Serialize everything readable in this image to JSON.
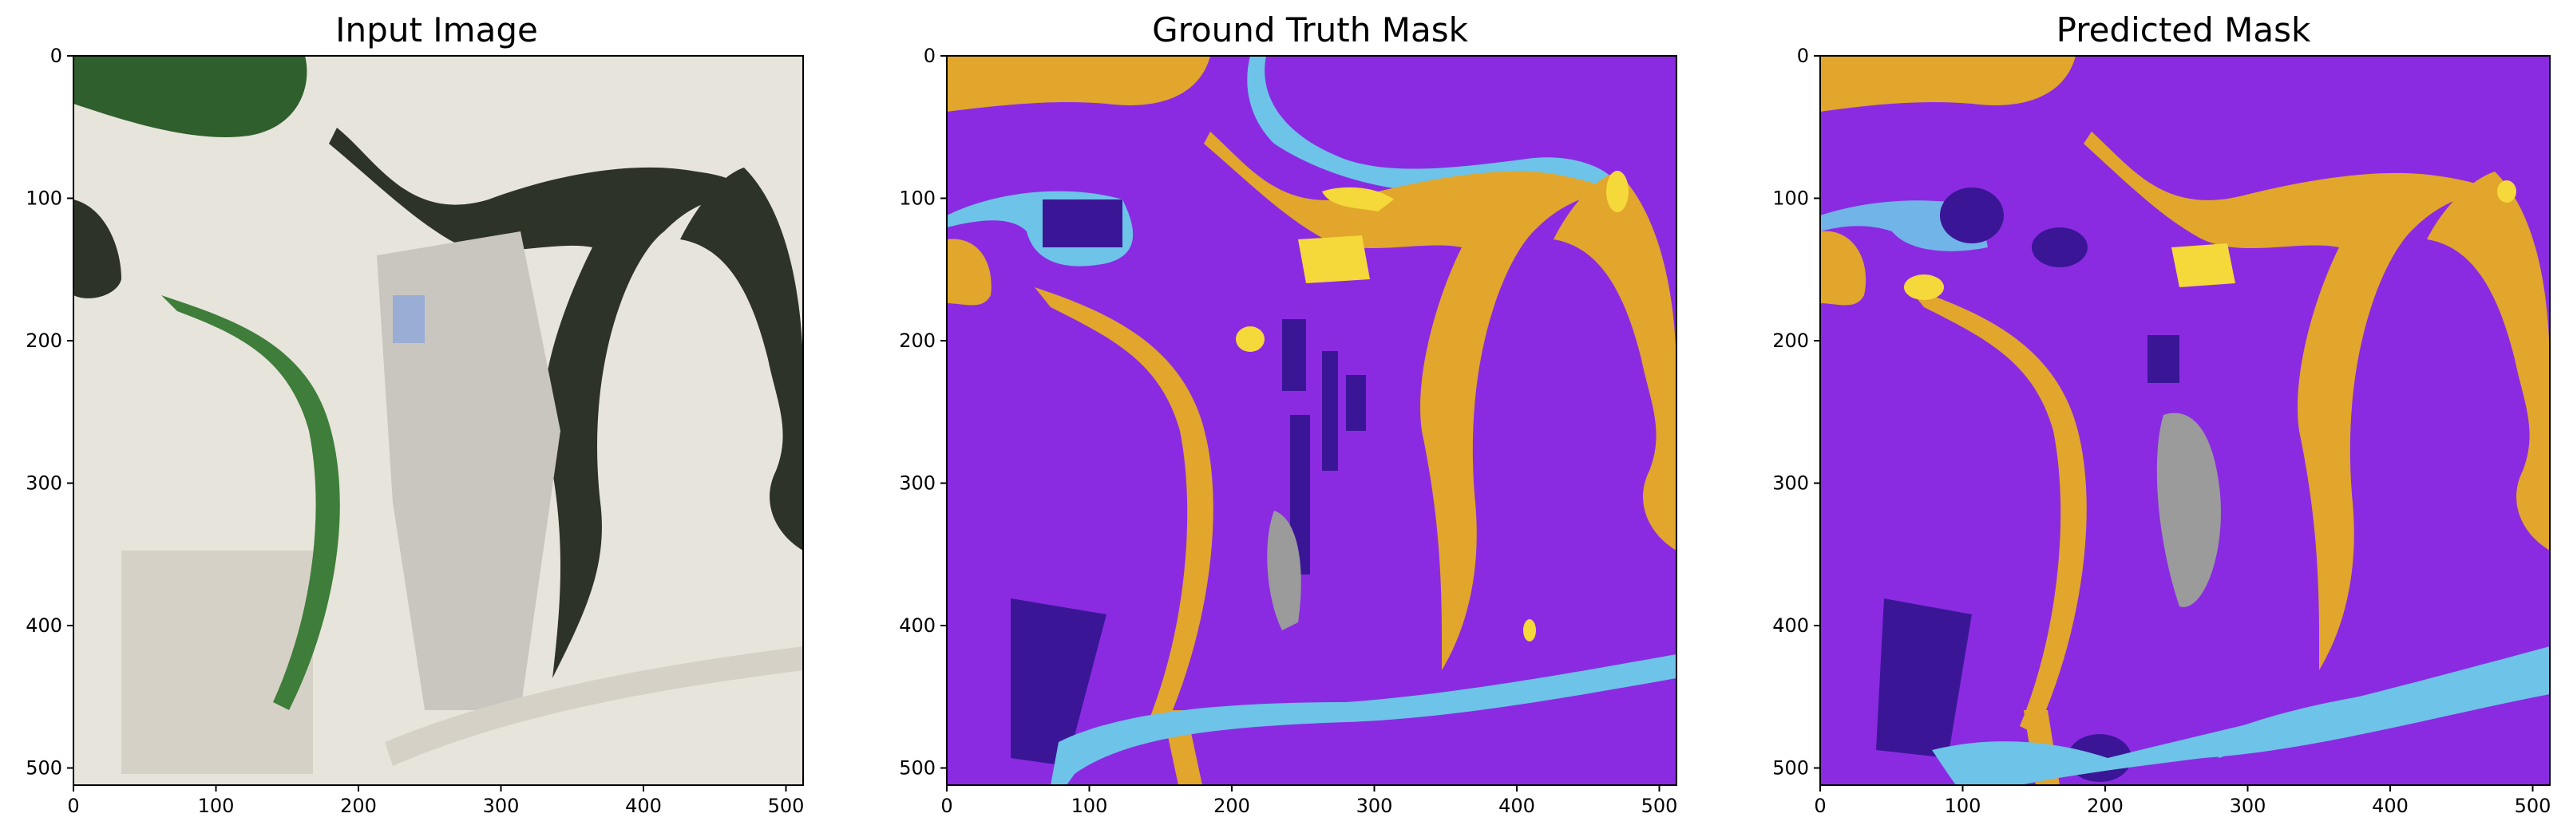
{
  "figure": {
    "panels": [
      {
        "title": "Input Image",
        "kind": "satellite-photo",
        "colors": {
          "sand": "#e7e4dc",
          "sand_dark": "#d6d1c6",
          "water": "#2e3328",
          "water_green": "#2f5f2c",
          "vegetation": "#3f7d3a",
          "built": "#c9c6bf",
          "blue_roof": "#8fa6d9"
        }
      },
      {
        "title": "Ground Truth Mask",
        "kind": "segmentation-mask",
        "colors": {
          "background": "#8a2be2",
          "orange": "#e1a62b",
          "light_blue": "#6ec3e8",
          "dark_purple": "#3a1696",
          "yellow": "#f5d83a",
          "gray": "#9b9b9b"
        }
      },
      {
        "title": "Predicted Mask",
        "kind": "segmentation-mask",
        "colors": {
          "background": "#8a2be2",
          "orange": "#e1a62b",
          "light_blue": "#6ec3e8",
          "dark_purple": "#3a1696",
          "yellow": "#f5d83a",
          "gray": "#9b9b9b"
        }
      }
    ],
    "axes": {
      "x_ticks": [
        "0",
        "100",
        "200",
        "300",
        "400",
        "500"
      ],
      "y_ticks": [
        "0",
        "100",
        "200",
        "300",
        "400",
        "500"
      ],
      "x_tick_values": [
        0,
        100,
        200,
        300,
        400,
        500
      ],
      "y_tick_values": [
        0,
        100,
        200,
        300,
        400,
        500
      ],
      "xlim": [
        0,
        512
      ],
      "ylim": [
        512,
        0
      ]
    }
  }
}
